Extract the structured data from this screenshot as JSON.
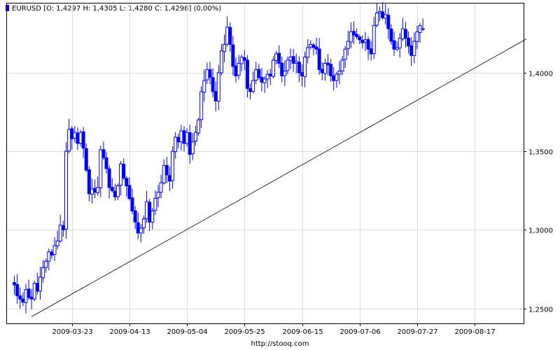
{
  "chart_data": {
    "type": "candlestick",
    "symbol": "EURUSD",
    "legend_text": "EURUSD [O: 1,4297  H: 1,4305  L: 1,4280  C: 1,4298] (0,00%)",
    "source": "http://stooq.com",
    "ylim": [
      1.2405,
      1.4445
    ],
    "y_ticks": [
      {
        "value": 1.25,
        "label": "1,2500"
      },
      {
        "value": 1.3,
        "label": "1,3000"
      },
      {
        "value": 1.35,
        "label": "1,3500"
      },
      {
        "value": 1.4,
        "label": "1,4000"
      }
    ],
    "x_ticks": [
      {
        "date": "2009-03-23",
        "index": 20
      },
      {
        "date": "2009-04-13",
        "index": 40
      },
      {
        "date": "2009-05-04",
        "index": 60
      },
      {
        "date": "2009-05-25",
        "index": 80
      },
      {
        "date": "2009-06-15",
        "index": 100
      },
      {
        "date": "2009-07-06",
        "index": 120
      },
      {
        "date": "2009-08-17",
        "index": 160
      }
    ],
    "x_ticks_extra": [
      {
        "date": "2009-07-27",
        "index": 140
      }
    ],
    "trendline": [
      {
        "index": 6,
        "value": 1.2448
      },
      {
        "index": 178,
        "value": 1.4215
      }
    ],
    "colors": {
      "bull": "#ffffff",
      "bear": "#0000ff",
      "outline": "#0000ff",
      "grid": "#dddddd",
      "axis": "#000000",
      "trendline": "#000000"
    },
    "closes": [
      1.265,
      1.258,
      1.256,
      1.254,
      1.262,
      1.257,
      1.256,
      1.266,
      1.261,
      1.27,
      1.276,
      1.28,
      1.286,
      1.284,
      1.29,
      1.293,
      1.303,
      1.3,
      1.35,
      1.364,
      1.358,
      1.362,
      1.355,
      1.362,
      1.352,
      1.338,
      1.323,
      1.326,
      1.324,
      1.327,
      1.351,
      1.346,
      1.339,
      1.327,
      1.325,
      1.321,
      1.328,
      1.342,
      1.333,
      1.328,
      1.32,
      1.312,
      1.305,
      1.298,
      1.301,
      1.307,
      1.318,
      1.305,
      1.312,
      1.32,
      1.324,
      1.33,
      1.341,
      1.335,
      1.331,
      1.35,
      1.359,
      1.356,
      1.363,
      1.355,
      1.362,
      1.348,
      1.356,
      1.362,
      1.37,
      1.388,
      1.395,
      1.402,
      1.397,
      1.388,
      1.382,
      1.4,
      1.414,
      1.418,
      1.429,
      1.418,
      1.404,
      1.398,
      1.406,
      1.41,
      1.408,
      1.39,
      1.388,
      1.395,
      1.402,
      1.397,
      1.394,
      1.396,
      1.399,
      1.398,
      1.408,
      1.412,
      1.406,
      1.398,
      1.401,
      1.408,
      1.41,
      1.406,
      1.407,
      1.4,
      1.398,
      1.41,
      1.416,
      1.418,
      1.416,
      1.415,
      1.402,
      1.4,
      1.406,
      1.405,
      1.398,
      1.395,
      1.399,
      1.401,
      1.408,
      1.415,
      1.42,
      1.426,
      1.424,
      1.423,
      1.421,
      1.419,
      1.421,
      1.415,
      1.412,
      1.43,
      1.438,
      1.439,
      1.435,
      1.437,
      1.428,
      1.42,
      1.415,
      1.416,
      1.422,
      1.428,
      1.422,
      1.417,
      1.411,
      1.42,
      1.426,
      1.43,
      1.428
    ],
    "last_values": {
      "open": "1,4297",
      "high": "1,4305",
      "low": "1,4280",
      "close": "1,4298",
      "change": "0,00%"
    }
  }
}
